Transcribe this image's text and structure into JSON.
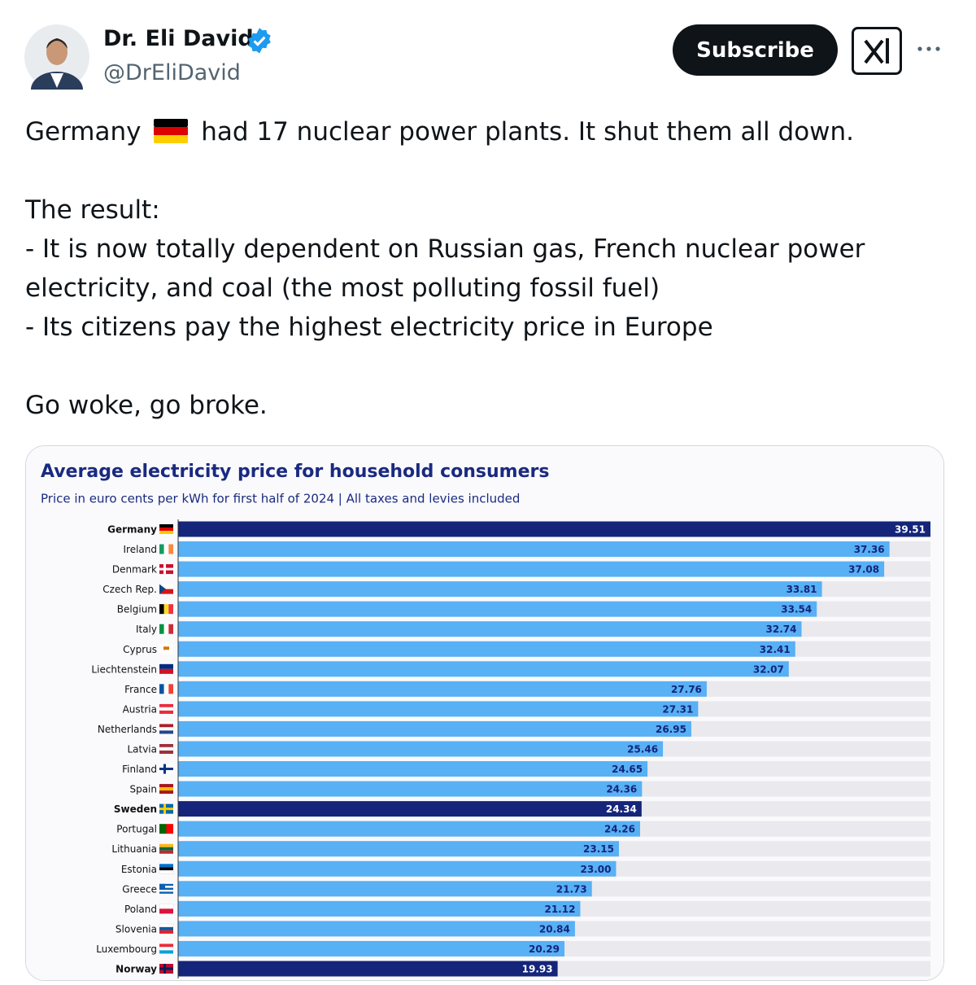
{
  "tweet": {
    "name": "Dr. Eli David",
    "handle": "@DrEliDavid",
    "subscribe": "Subscribe",
    "text": {
      "line_before_flag": "Germany",
      "line_after_flag": "had 17 nuclear power plants. It shut them all down.",
      "paragraph_2": [
        "The result:",
        "- It is now totally dependent on Russian gas, French nuclear power electricity, and coal (the most polluting fossil fuel)",
        "- Its citizens pay the highest electricity price in Europe"
      ],
      "paragraph_3": "Go woke, go broke."
    }
  },
  "chart_data": {
    "type": "bar",
    "orientation": "horizontal",
    "title": "Average electricity price for household consumers",
    "subtitle": "Price in euro cents per kWh for first half of 2024 | All taxes and levies included",
    "categories": [
      "Germany",
      "Ireland",
      "Denmark",
      "Czech Rep.",
      "Belgium",
      "Italy",
      "Cyprus",
      "Liechtenstein",
      "France",
      "Austria",
      "Netherlands",
      "Latvia",
      "Finland",
      "Spain",
      "Sweden",
      "Portugal",
      "Lithuania",
      "Estonia",
      "Greece",
      "Poland",
      "Slovenia",
      "Luxembourg",
      "Norway"
    ],
    "values": [
      39.51,
      37.36,
      37.08,
      33.81,
      33.54,
      32.74,
      32.41,
      32.07,
      27.76,
      27.31,
      26.95,
      25.46,
      24.65,
      24.36,
      24.34,
      24.26,
      23.15,
      23.0,
      21.73,
      21.12,
      20.84,
      20.29,
      19.93
    ],
    "value_labels": [
      "39.51",
      "37.36",
      "37.08",
      "33.81",
      "33.54",
      "32.74",
      "32.41",
      "32.07",
      "27.76",
      "27.31",
      "26.95",
      "25.46",
      "24.65",
      "24.36",
      "24.34",
      "24.26",
      "23.15",
      "23.00",
      "21.73",
      "21.12",
      "20.84",
      "20.29",
      "19.93"
    ],
    "color": "#58b0f5",
    "colors": [
      "#14257a",
      "#58b0f5",
      "#58b0f5",
      "#58b0f5",
      "#58b0f5",
      "#58b0f5",
      "#58b0f5",
      "#58b0f5",
      "#58b0f5",
      "#58b0f5",
      "#58b0f5",
      "#58b0f5",
      "#58b0f5",
      "#58b0f5",
      "#14257a",
      "#58b0f5",
      "#58b0f5",
      "#58b0f5",
      "#58b0f5",
      "#58b0f5",
      "#58b0f5",
      "#58b0f5",
      "#14257a"
    ]
  }
}
